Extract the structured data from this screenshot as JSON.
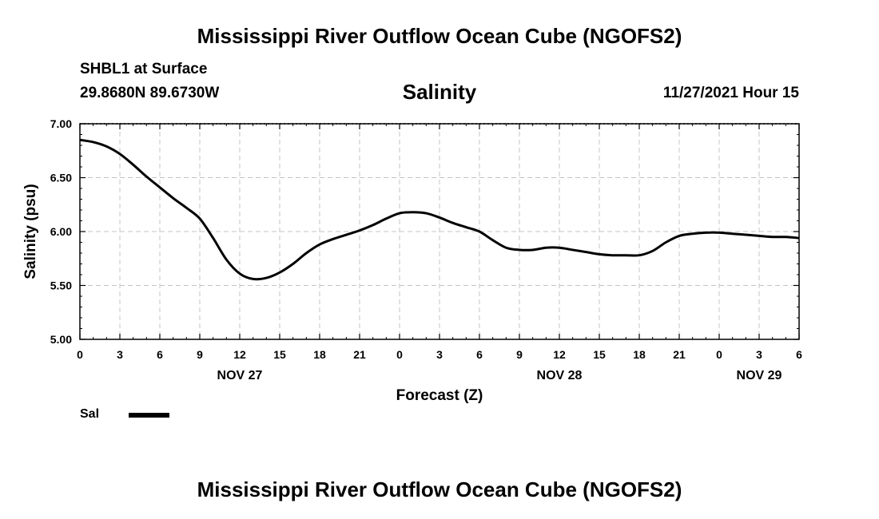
{
  "header": {
    "title": "Mississippi River Outflow Ocean Cube (NGOFS2)",
    "station": "SHBL1 at Surface",
    "coords": "29.8680N  89.6730W",
    "chart_title": "Salinity",
    "datetime": "11/27/2021 Hour 15"
  },
  "footer": {
    "title": "Mississippi River Outflow Ocean Cube (NGOFS2)"
  },
  "legend": {
    "label": "Sal",
    "color": "#000000"
  },
  "chart_data": {
    "type": "line",
    "title": "Salinity",
    "xlabel": "Forecast (Z)",
    "ylabel": "Salinity (psu)",
    "ylim": [
      5.0,
      7.0
    ],
    "xlim": [
      0,
      54
    ],
    "x_unit": "hours since NOV 27 00Z",
    "grid": true,
    "ytick_values": [
      5.0,
      5.5,
      6.0,
      6.5,
      7.0
    ],
    "ytick_labels": [
      "5.00",
      "5.50",
      "6.00",
      "6.50",
      "7.00"
    ],
    "xtick_values": [
      0,
      3,
      6,
      9,
      12,
      15,
      18,
      21,
      24,
      27,
      30,
      33,
      36,
      39,
      42,
      45,
      48,
      51,
      54
    ],
    "xtick_labels": [
      "0",
      "3",
      "6",
      "9",
      "12",
      "15",
      "18",
      "21",
      "0",
      "3",
      "6",
      "9",
      "12",
      "15",
      "18",
      "21",
      "0",
      "3",
      "6"
    ],
    "date_labels": [
      {
        "x": 12,
        "label": "NOV 27"
      },
      {
        "x": 36,
        "label": "NOV 28"
      },
      {
        "x": 51,
        "label": "NOV 29"
      }
    ],
    "series": [
      {
        "name": "Sal",
        "x": [
          0,
          1,
          2,
          3,
          4,
          5,
          6,
          7,
          8,
          9,
          10,
          11,
          12,
          13,
          14,
          15,
          16,
          17,
          18,
          19,
          20,
          21,
          22,
          23,
          24,
          25,
          26,
          27,
          28,
          29,
          30,
          31,
          32,
          33,
          34,
          35,
          36,
          37,
          38,
          39,
          40,
          41,
          42,
          43,
          44,
          45,
          46,
          47,
          48,
          49,
          50,
          51,
          52,
          53,
          54
        ],
        "values": [
          6.85,
          6.83,
          6.79,
          6.72,
          6.62,
          6.51,
          6.41,
          6.31,
          6.22,
          6.12,
          5.94,
          5.74,
          5.61,
          5.56,
          5.57,
          5.62,
          5.7,
          5.8,
          5.88,
          5.93,
          5.97,
          6.01,
          6.06,
          6.12,
          6.17,
          6.18,
          6.17,
          6.13,
          6.08,
          6.04,
          6.0,
          5.92,
          5.85,
          5.83,
          5.83,
          5.85,
          5.85,
          5.83,
          5.81,
          5.79,
          5.78,
          5.78,
          5.78,
          5.82,
          5.9,
          5.96,
          5.98,
          5.99,
          5.99,
          5.98,
          5.97,
          5.96,
          5.95,
          5.95,
          5.94
        ]
      }
    ]
  }
}
